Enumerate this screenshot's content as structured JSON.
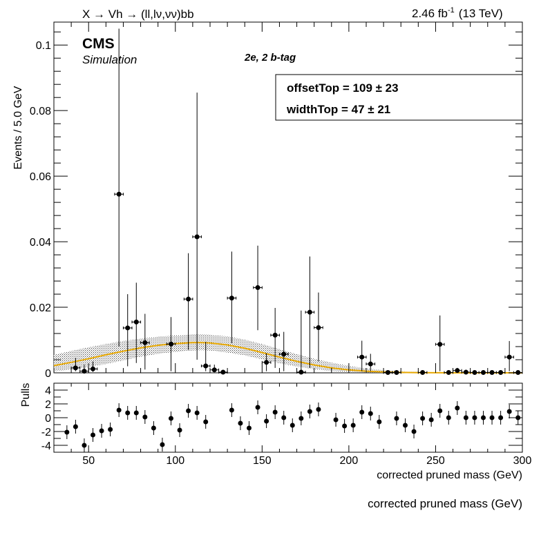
{
  "header": {
    "process_label": "X → Vh → (ll,lν,νν)bb",
    "lumi_label": "2.46 fb",
    "lumi_exp": "-1",
    "energy_label": "(13 TeV)",
    "experiment": "CMS",
    "subtitle": "Simulation",
    "category": "2e, 2 b-tag"
  },
  "fit_box": {
    "offset_label": "offsetTop =  109 ± 23",
    "width_label": "widthTop =  47 ± 21"
  },
  "colors": {
    "fit_line": "#e8a800",
    "band": "#444444",
    "points": "#000000"
  },
  "chart_data": [
    {
      "type": "scatter",
      "panel": "main",
      "xlabel": "corrected pruned mass (GeV)",
      "ylabel": "Events / 5.0 GeV",
      "xlim": [
        30,
        300
      ],
      "ylim": [
        0,
        0.107
      ],
      "x_ticks": [
        50,
        100,
        150,
        200,
        250,
        300
      ],
      "y_ticks": [
        0,
        0.02,
        0.04,
        0.06,
        0.08,
        0.1
      ],
      "y_tick_labels": [
        "0",
        "0.02",
        "0.04",
        "0.06",
        "0.08",
        "0.1"
      ],
      "points": [
        {
          "x": 42.5,
          "y": 0.0015,
          "lo": 0.0005,
          "hi": 0.0045
        },
        {
          "x": 47.5,
          "y": 0.0005,
          "lo": 0.0001,
          "hi": 0.0025
        },
        {
          "x": 52.5,
          "y": 0.0012,
          "lo": 0.0003,
          "hi": 0.0035
        },
        {
          "x": 67.5,
          "y": 0.0545,
          "lo": 0.008,
          "hi": 0.105
        },
        {
          "x": 72.5,
          "y": 0.0137,
          "lo": 0.002,
          "hi": 0.024
        },
        {
          "x": 77.5,
          "y": 0.0155,
          "lo": 0.003,
          "hi": 0.0275
        },
        {
          "x": 82.5,
          "y": 0.0092,
          "lo": 0.001,
          "hi": 0.018
        },
        {
          "x": 97.5,
          "y": 0.0088,
          "lo": 0.0005,
          "hi": 0.017
        },
        {
          "x": 107.5,
          "y": 0.0225,
          "lo": 0.007,
          "hi": 0.0365
        },
        {
          "x": 112.5,
          "y": 0.0415,
          "lo": 0.004,
          "hi": 0.0855
        },
        {
          "x": 117.5,
          "y": 0.0021,
          "lo": 0.0005,
          "hi": 0.0095
        },
        {
          "x": 122.5,
          "y": 0.0009,
          "lo": 0.0002,
          "hi": 0.0025
        },
        {
          "x": 127.5,
          "y": 0.0002,
          "lo": 0.0,
          "hi": 0.0008
        },
        {
          "x": 132.5,
          "y": 0.0228,
          "lo": 0.009,
          "hi": 0.037
        },
        {
          "x": 147.5,
          "y": 0.026,
          "lo": 0.013,
          "hi": 0.0388
        },
        {
          "x": 152.5,
          "y": 0.0032,
          "lo": 0.0005,
          "hi": 0.006
        },
        {
          "x": 157.5,
          "y": 0.0115,
          "lo": 0.0015,
          "hi": 0.0198
        },
        {
          "x": 162.5,
          "y": 0.0057,
          "lo": 0.0005,
          "hi": 0.0125
        },
        {
          "x": 172.5,
          "y": 0.0002,
          "lo": 0.0,
          "hi": 0.019
        },
        {
          "x": 177.5,
          "y": 0.0185,
          "lo": 0.0015,
          "hi": 0.0355
        },
        {
          "x": 182.5,
          "y": 0.0138,
          "lo": 0.0035,
          "hi": 0.0245
        },
        {
          "x": 207.5,
          "y": 0.0048,
          "lo": 0.0005,
          "hi": 0.0098
        },
        {
          "x": 212.5,
          "y": 0.0027,
          "lo": 0.0005,
          "hi": 0.0058
        },
        {
          "x": 222.5,
          "y": 0.0001,
          "lo": 0.0,
          "hi": 0.0005
        },
        {
          "x": 227.5,
          "y": 0.0001,
          "lo": 0.0,
          "hi": 0.0005
        },
        {
          "x": 242.5,
          "y": 0.0001,
          "lo": 0.0,
          "hi": 0.0004
        },
        {
          "x": 252.5,
          "y": 0.0087,
          "lo": 0.0005,
          "hi": 0.0175
        },
        {
          "x": 257.5,
          "y": 0.0001,
          "lo": 0.0,
          "hi": 0.0004
        },
        {
          "x": 262.5,
          "y": 0.0007,
          "lo": 0.0002,
          "hi": 0.0015
        },
        {
          "x": 267.5,
          "y": 0.0002,
          "lo": 0.0,
          "hi": 0.0006
        },
        {
          "x": 272.5,
          "y": 0.0001,
          "lo": 0.0,
          "hi": 0.0004
        },
        {
          "x": 277.5,
          "y": 0.0001,
          "lo": 0.0,
          "hi": 0.0004
        },
        {
          "x": 282.5,
          "y": 0.0001,
          "lo": 0.0,
          "hi": 0.0004
        },
        {
          "x": 287.5,
          "y": 0.0001,
          "lo": 0.0,
          "hi": 0.0004
        },
        {
          "x": 292.5,
          "y": 0.0048,
          "lo": 0.0005,
          "hi": 0.0097
        },
        {
          "x": 297.5,
          "y": 0.0001,
          "lo": 0.0,
          "hi": 0.0004
        }
      ],
      "fit": {
        "x": [
          30,
          40,
          50,
          60,
          70,
          80,
          90,
          100,
          110,
          115,
          120,
          130,
          140,
          150,
          160,
          170,
          180,
          190,
          200,
          210,
          220,
          230,
          240,
          250,
          260,
          280,
          300
        ],
        "y": [
          0.0022,
          0.0032,
          0.0043,
          0.0055,
          0.0066,
          0.0076,
          0.0084,
          0.0089,
          0.0092,
          0.0092,
          0.0091,
          0.0085,
          0.0075,
          0.0062,
          0.0048,
          0.0035,
          0.0024,
          0.0015,
          0.0009,
          0.0005,
          0.00025,
          0.00012,
          6e-05,
          3e-05,
          1e-05,
          0.0,
          0.0
        ],
        "band_lo": [
          0.0005,
          0.001,
          0.0018,
          0.0027,
          0.0038,
          0.0049,
          0.0058,
          0.0064,
          0.0068,
          0.0069,
          0.0068,
          0.0062,
          0.0053,
          0.0041,
          0.0029,
          0.0019,
          0.0011,
          0.0006,
          0.0003,
          0.0001,
          5e-05,
          2e-05,
          0.0,
          0.0,
          0.0,
          0.0,
          0.0
        ],
        "band_hi": [
          0.0055,
          0.0067,
          0.0078,
          0.0088,
          0.0097,
          0.0104,
          0.011,
          0.0114,
          0.0117,
          0.0117,
          0.0116,
          0.0111,
          0.0101,
          0.0088,
          0.0072,
          0.0057,
          0.0043,
          0.0031,
          0.0021,
          0.0013,
          0.0008,
          0.0005,
          0.0003,
          0.00015,
          8e-05,
          2e-05,
          0.0
        ]
      }
    },
    {
      "type": "scatter",
      "panel": "pulls",
      "xlabel": "corrected pruned mass (GeV)",
      "ylabel": "Pulls",
      "xlim": [
        30,
        300
      ],
      "ylim": [
        -5,
        5
      ],
      "x_ticks": [
        50,
        100,
        150,
        200,
        250,
        300
      ],
      "y_ticks": [
        -4,
        -2,
        0,
        2,
        4
      ],
      "points": [
        {
          "x": 37.5,
          "y": -2.1
        },
        {
          "x": 42.5,
          "y": -1.3
        },
        {
          "x": 47.5,
          "y": -4.0
        },
        {
          "x": 52.5,
          "y": -2.5
        },
        {
          "x": 57.5,
          "y": -1.9
        },
        {
          "x": 62.5,
          "y": -1.7
        },
        {
          "x": 67.5,
          "y": 1.1
        },
        {
          "x": 72.5,
          "y": 0.7
        },
        {
          "x": 77.5,
          "y": 0.7
        },
        {
          "x": 82.5,
          "y": 0.1
        },
        {
          "x": 87.5,
          "y": -1.5
        },
        {
          "x": 92.5,
          "y": -3.9
        },
        {
          "x": 97.5,
          "y": -0.1
        },
        {
          "x": 102.5,
          "y": -1.8
        },
        {
          "x": 107.5,
          "y": 1.0
        },
        {
          "x": 112.5,
          "y": 0.7
        },
        {
          "x": 117.5,
          "y": -0.6
        },
        {
          "x": 132.5,
          "y": 1.1
        },
        {
          "x": 137.5,
          "y": -0.8
        },
        {
          "x": 142.5,
          "y": -1.5
        },
        {
          "x": 147.5,
          "y": 1.5
        },
        {
          "x": 152.5,
          "y": -0.5
        },
        {
          "x": 157.5,
          "y": 0.8
        },
        {
          "x": 162.5,
          "y": 0.0
        },
        {
          "x": 167.5,
          "y": -1.1
        },
        {
          "x": 172.5,
          "y": -0.1
        },
        {
          "x": 177.5,
          "y": 0.9
        },
        {
          "x": 182.5,
          "y": 1.2
        },
        {
          "x": 192.5,
          "y": -0.3
        },
        {
          "x": 197.5,
          "y": -1.2
        },
        {
          "x": 202.5,
          "y": -1.1
        },
        {
          "x": 207.5,
          "y": 0.8
        },
        {
          "x": 212.5,
          "y": 0.6
        },
        {
          "x": 217.5,
          "y": -0.6
        },
        {
          "x": 227.5,
          "y": -0.1
        },
        {
          "x": 232.5,
          "y": -1.1
        },
        {
          "x": 237.5,
          "y": -2.0
        },
        {
          "x": 242.5,
          "y": -0.1
        },
        {
          "x": 247.5,
          "y": -0.3
        },
        {
          "x": 252.5,
          "y": 1.0
        },
        {
          "x": 257.5,
          "y": 0.0
        },
        {
          "x": 262.5,
          "y": 1.4
        },
        {
          "x": 267.5,
          "y": 0.0
        },
        {
          "x": 272.5,
          "y": 0.0
        },
        {
          "x": 277.5,
          "y": 0.0
        },
        {
          "x": 282.5,
          "y": 0.0
        },
        {
          "x": 287.5,
          "y": 0.0
        },
        {
          "x": 292.5,
          "y": 0.9
        },
        {
          "x": 297.5,
          "y": 0.0
        }
      ]
    }
  ]
}
